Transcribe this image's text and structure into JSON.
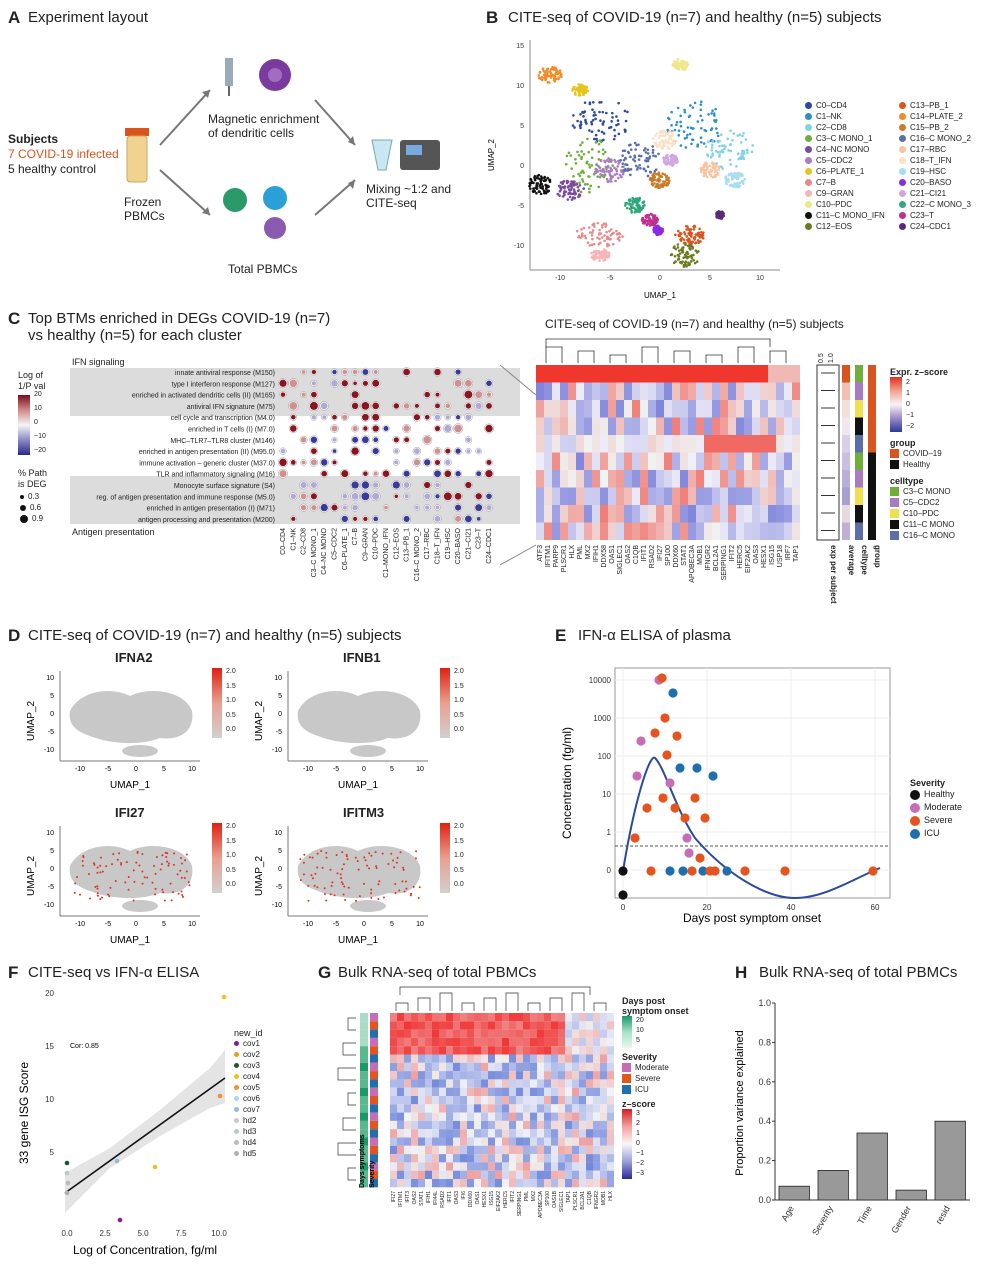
{
  "panelA": {
    "label": "A",
    "title": "Experiment layout",
    "subjects_head": "Subjects",
    "subjects_covid": "7 COVID-19 infected",
    "subjects_healthy": "5 healthy control",
    "frozen": "Frozen",
    "pbmcs": "PBMCs",
    "enrich1": "Magnetic enrichment",
    "enrich2": "of dendritic cells",
    "total": "Total PBMCs",
    "mix1": "Mixing ~1:2 and",
    "mix2": "CITE-seq",
    "colors": {
      "covid": "#d9541e"
    }
  },
  "panelB": {
    "label": "B",
    "title": "CITE-seq of COVID-19 (n=7) and healthy (n=5) subjects",
    "xlabel": "UMAP_1",
    "ylabel": "UMAP_2",
    "xticks": [
      "-10",
      "-5",
      "0",
      "5",
      "10"
    ],
    "yticks": [
      "15",
      "10",
      "5",
      "0",
      "-5",
      "-10"
    ],
    "clusters": [
      {
        "name": "C0–CD4",
        "color": "#2e4a9e"
      },
      {
        "name": "C1–NK",
        "color": "#2e8fc8"
      },
      {
        "name": "C2–CD8",
        "color": "#7fd3e8"
      },
      {
        "name": "C3–C MONO_1",
        "color": "#6eae3a"
      },
      {
        "name": "C4–NC MONO",
        "color": "#7a4a9e"
      },
      {
        "name": "C5–CDC2",
        "color": "#a87bc4"
      },
      {
        "name": "C6–PLATE_1",
        "color": "#e5c51c"
      },
      {
        "name": "C7–B",
        "color": "#e88a8a"
      },
      {
        "name": "C9–GRAN",
        "color": "#f3b5b5"
      },
      {
        "name": "C10–PDC",
        "color": "#f0e68c"
      },
      {
        "name": "C11–C MONO_IFN",
        "color": "#111111"
      },
      {
        "name": "C12–EOS",
        "color": "#6b7a1f"
      },
      {
        "name": "C13–PB_1",
        "color": "#d9541e"
      },
      {
        "name": "C14–PLATE_2",
        "color": "#f28c28"
      },
      {
        "name": "C15–PB_2",
        "color": "#c97b2a"
      },
      {
        "name": "C16–C MONO_2",
        "color": "#5b6ea8"
      },
      {
        "name": "C17–RBC",
        "color": "#f7c4a0"
      },
      {
        "name": "C18–T_IFN",
        "color": "#fbe0c8"
      },
      {
        "name": "C19–HSC",
        "color": "#a8dcef"
      },
      {
        "name": "C20–BASO",
        "color": "#8a2be2"
      },
      {
        "name": "C21–CI21",
        "color": "#cfa8e0"
      },
      {
        "name": "C22–C MONO_3",
        "color": "#2ea87a"
      },
      {
        "name": "C23–T",
        "color": "#c03090"
      },
      {
        "name": "C24–CDC1",
        "color": "#5a2a7a"
      }
    ]
  },
  "panelC": {
    "label": "C",
    "title1": "Top BTMs enriched in DEGs COVID-19 (n=7)",
    "title2": "vs healthy (n=5) for each cluster",
    "legend_title1": "Log of",
    "legend_title2": "1/P val",
    "legend_ticks": [
      "20",
      "10",
      "0",
      "−10",
      "−20"
    ],
    "size_title1": "% Path",
    "size_title2": "is DEG",
    "size_vals": [
      "0.3",
      "0.6",
      "0.9"
    ],
    "group1": "IFN signaling",
    "group2": "Antigen presentation",
    "rows": [
      "innate antiviral response (M150)",
      "type I interferon response (M127)",
      "enriched in activated dendritic cells (II) (M165)",
      "antiviral IFN signature (M75)",
      "cell cycle and transcription (M4.0)",
      "enriched in T cells (I) (M7.0)",
      "MHC–TLR7–TLR8 cluster (M146)",
      "enriched in antigen presentation (II) (M95.0)",
      "immune activation – generic cluster (M37.0)",
      "TLR and inflammatory signaling (M16)",
      "Monocyte surface signature (S4)",
      "reg. of antigen presentation and immune response (M5.0)",
      "enriched in antigen presentation (I) (M71)",
      "antigen processing and presentation (M200)"
    ],
    "cols": [
      "C0–CD4",
      "C1–NK",
      "C2–CD8",
      "C3–C MONO_1",
      "C4–NC MONO",
      "C5–CDC2",
      "C6–PLATE_1",
      "C7–B",
      "C9–GRAN",
      "C10–PDC",
      "C1–MONO_IFN",
      "C12–EOS",
      "C13–PB_1",
      "C16–C MONO_2",
      "C17–RBC",
      "C18–T_IFN",
      "C19–HSC",
      "C20–BASO",
      "C21–CI21",
      "C23–T",
      "C24–CDC1"
    ],
    "heat_title": "CITE-seq of COVID-19 (n=7) and healthy (n=5) subjects",
    "genes": [
      "ATF3",
      "IFITM1",
      "PARP9",
      "PLSCR1",
      "HLX",
      "PML",
      "MX2",
      "IFIH1",
      "DDX58",
      "OAS1",
      "SIGLEC1",
      "OAS2",
      "C1QB",
      "IFIT1",
      "RSAD2",
      "IFI27",
      "SP100",
      "DDX60",
      "STAT1",
      "APOBEC3A",
      "MOB1",
      "IFNGR2",
      "BCL2A1",
      "SERPING1",
      "IFIT2",
      "HERC5",
      "EIF2AK2",
      "OAS3",
      "HESX1",
      "ISG15",
      "USP18",
      "IRF7",
      "TAP1"
    ],
    "sidecols": [
      "exp per subject",
      "average",
      "celltype",
      "group"
    ],
    "scale_title": "Expr. z–score",
    "scale_ticks": [
      "2",
      "1",
      "0",
      "−1",
      "−2"
    ],
    "top_ticks": [
      "0.5",
      "1.0"
    ],
    "group_title": "group",
    "group_items": [
      {
        "name": "COVID–19",
        "color": "#d9541e"
      },
      {
        "name": "Healthy",
        "color": "#111111"
      }
    ],
    "celltype_title": "celltype",
    "celltype_items": [
      {
        "name": "C3–C MONO",
        "color": "#6eae3a"
      },
      {
        "name": "C5–CDC2",
        "color": "#a87bc4"
      },
      {
        "name": "C10–PDC",
        "color": "#f0e050"
      },
      {
        "name": "C11–C MONO",
        "color": "#111111"
      },
      {
        "name": "C16–C MONO",
        "color": "#5b6ea8"
      }
    ]
  },
  "panelD": {
    "label": "D",
    "title": "CITE-seq of COVID-19 (n=7) and healthy (n=5) subjects",
    "genes": [
      "IFNA2",
      "IFNB1",
      "IFI27",
      "IFITM3"
    ],
    "xlabel": "UMAP_1",
    "ylabel": "UMAP_2",
    "xticks": [
      "-10",
      "-5",
      "0",
      "5",
      "10"
    ],
    "yticks": [
      "10",
      "5",
      "0",
      "-5",
      "-10"
    ],
    "scale": [
      "2.0",
      "1.5",
      "1.0",
      "0.5",
      "0.0"
    ]
  },
  "panelE": {
    "label": "E",
    "title": "IFN-α ELISA of plasma",
    "xlabel": "Days post symptom onset",
    "ylabel": "Concentration (fg/ml)",
    "legend_title": "Severity",
    "legend": [
      {
        "name": "Healthy",
        "color": "#111111"
      },
      {
        "name": "Moderate",
        "color": "#c76db8"
      },
      {
        "name": "Severe",
        "color": "#e5541e"
      },
      {
        "name": "ICU",
        "color": "#1f6fae"
      }
    ]
  },
  "panelF": {
    "label": "F",
    "title": "CITE-seq vs IFN-α ELISA",
    "xlabel": "Log of Concentration, fg/ml",
    "ylabel": "33 gene ISG Score",
    "cor": "Cor: 0.85",
    "legend_title": "new_id",
    "legend": [
      {
        "name": "cov1",
        "color": "#8b1a8b"
      },
      {
        "name": "cov2",
        "color": "#e0a020"
      },
      {
        "name": "cov3",
        "color": "#1a5a2a"
      },
      {
        "name": "cov4",
        "color": "#f0c020"
      },
      {
        "name": "cov5",
        "color": "#f09030"
      },
      {
        "name": "cov6",
        "color": "#a8d8ee"
      },
      {
        "name": "cov7",
        "color": "#9ab8d8"
      },
      {
        "name": "hd2",
        "color": "#c8c8c8"
      },
      {
        "name": "hd3",
        "color": "#b8c8c8"
      },
      {
        "name": "hd4",
        "color": "#c0b8c0"
      },
      {
        "name": "hd5",
        "color": "#b0b0b0"
      }
    ]
  },
  "panelG": {
    "label": "G",
    "title": "Bulk RNA-seq of total PBMCs",
    "dso_title1": "Days post",
    "dso_title2": "symptom onset",
    "dso_ticks": [
      "20",
      "10",
      "5"
    ],
    "sev_title": "Severity",
    "sev_items": [
      {
        "name": "Moderate",
        "color": "#c76db8"
      },
      {
        "name": "Severe",
        "color": "#e5541e"
      },
      {
        "name": "ICU",
        "color": "#1f6fae"
      }
    ],
    "z_title": "z–score",
    "z_ticks": [
      "3",
      "2",
      "1",
      "0",
      "−1",
      "−2",
      "−3"
    ],
    "side1": "Days symptoms",
    "side2": "Severity",
    "genes": [
      "IFI27",
      "IFITM1",
      "IFIT3",
      "OAS2",
      "STAT1",
      "IFIH1",
      "IFI44L",
      "RSAD2",
      "IFIT1",
      "OAS3",
      "IFI6",
      "DDX60",
      "OAS1",
      "HESX1",
      "ISG15",
      "EIF2AK2",
      "HERC5",
      "IFIT2",
      "SERPING1",
      "PML",
      "MX2",
      "APOBEC3A",
      "SP100",
      "OAS1B",
      "SIGLEC1",
      "TAP1",
      "PLSCR1",
      "BCL2A1",
      "C1QB",
      "IFNGR2",
      "MOB1",
      "HLX"
    ]
  },
  "chart_data": {
    "type": "bar",
    "title": "Bulk RNA-seq of total PBMCs",
    "xlabel": "",
    "ylabel": "Proportion variance explained",
    "categories": [
      "Age",
      "Severity",
      "Time",
      "Gender",
      "resid"
    ],
    "values": [
      0.07,
      0.15,
      0.34,
      0.05,
      0.4
    ],
    "ylim": [
      0,
      1.0
    ],
    "yticks": [
      "0.0",
      "0.2",
      "0.4",
      "0.6",
      "0.8",
      "1.0"
    ]
  },
  "panelH": {
    "label": "H"
  }
}
